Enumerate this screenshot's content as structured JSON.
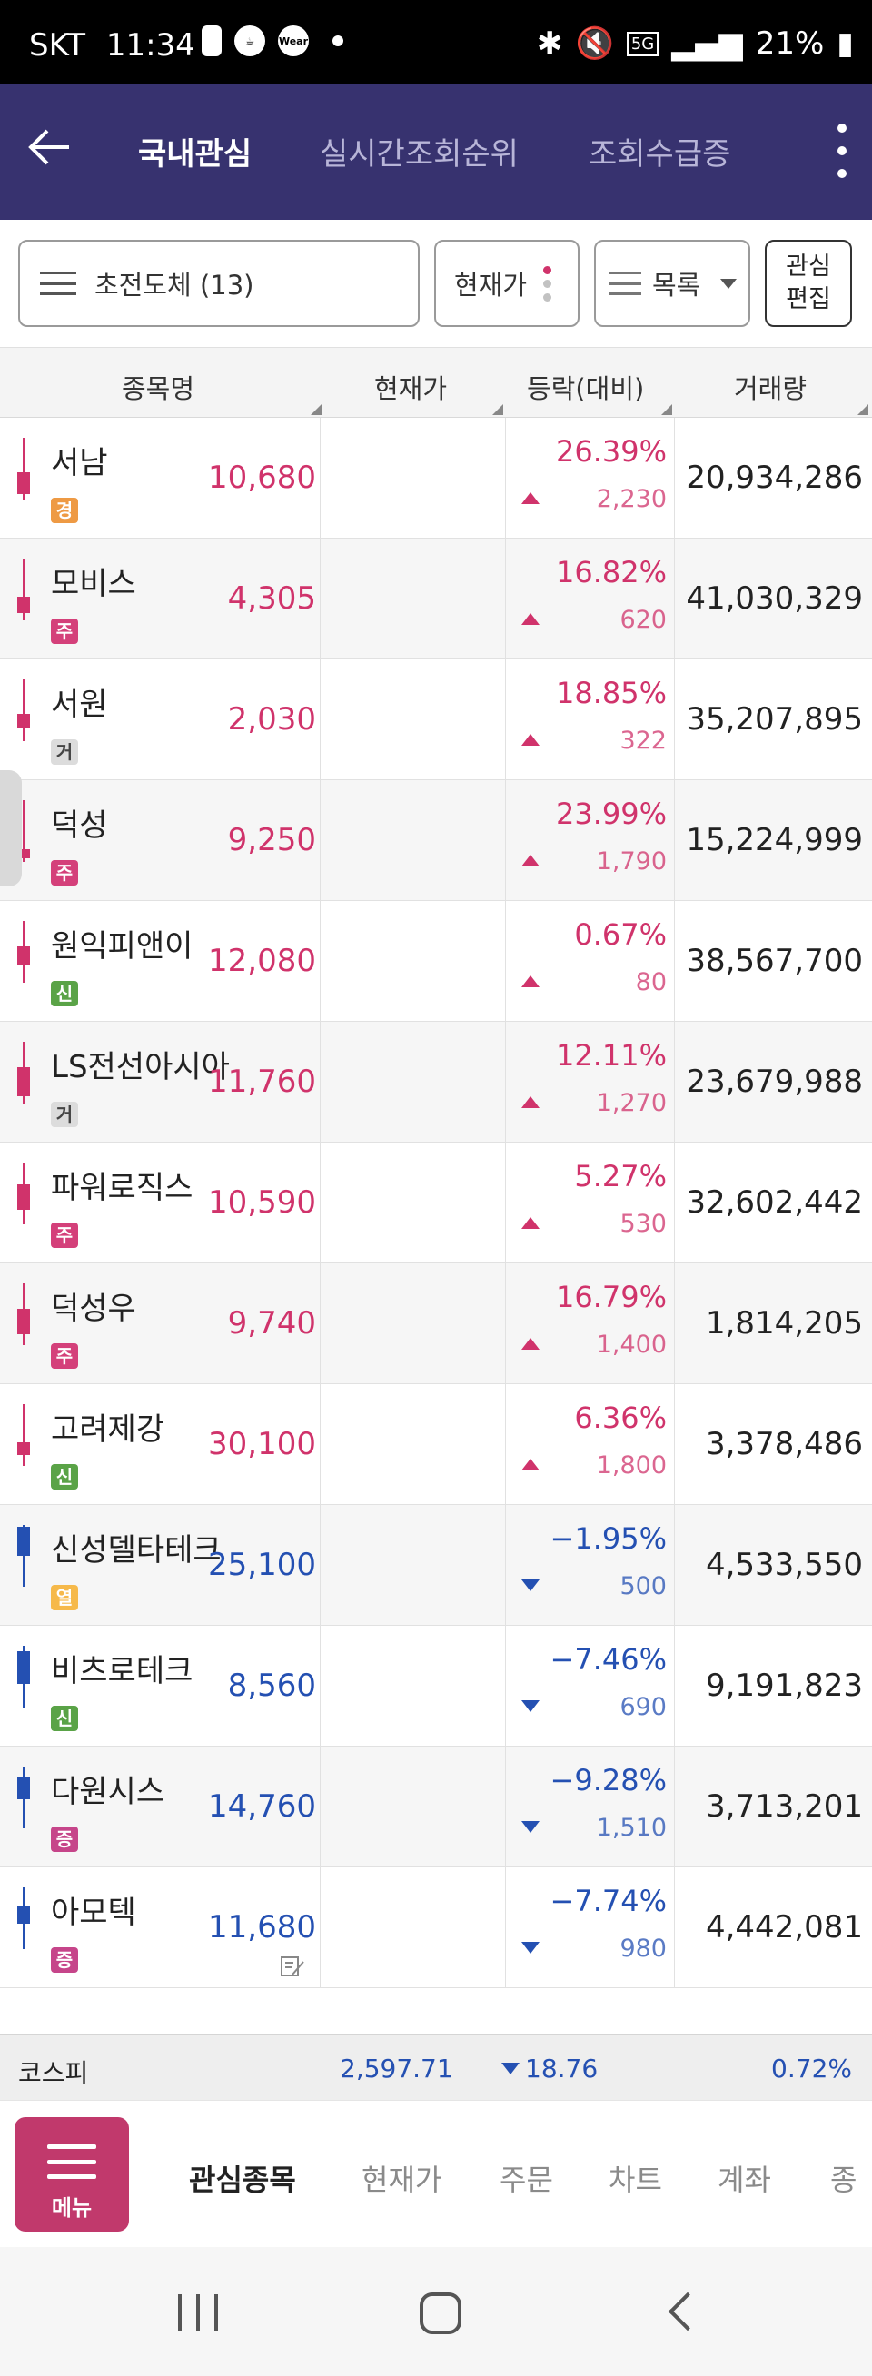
{
  "status": {
    "carrier": "SKT",
    "time": "11:34",
    "wear": "Wear",
    "battery": "21%",
    "network": "5G"
  },
  "header": {
    "tabs": [
      "국내관심",
      "실시간조회순위",
      "조회수급증"
    ]
  },
  "filters": {
    "group": "초전도체 (13)",
    "price_mode": "현재가",
    "view": "목록",
    "edit_line1": "관심",
    "edit_line2": "편집"
  },
  "table": {
    "columns": [
      "종목명",
      "현재가",
      "등락(대비)",
      "거래량"
    ],
    "rows": [
      {
        "name": "서남",
        "badge": "경",
        "price": "10,680",
        "pct": "26.39%",
        "diff": "2,230",
        "volume": "20,934,286",
        "dir": "up"
      },
      {
        "name": "모비스",
        "badge": "주",
        "price": "4,305",
        "pct": "16.82%",
        "diff": "620",
        "volume": "41,030,329",
        "dir": "up"
      },
      {
        "name": "서원",
        "badge": "거",
        "price": "2,030",
        "pct": "18.85%",
        "diff": "322",
        "volume": "35,207,895",
        "dir": "up"
      },
      {
        "name": "덕성",
        "badge": "주",
        "price": "9,250",
        "pct": "23.99%",
        "diff": "1,790",
        "volume": "15,224,999",
        "dir": "up"
      },
      {
        "name": "원익피앤이",
        "badge": "신",
        "price": "12,080",
        "pct": "0.67%",
        "diff": "80",
        "volume": "38,567,700",
        "dir": "up"
      },
      {
        "name": "LS전선아시아",
        "badge": "거",
        "price": "11,760",
        "pct": "12.11%",
        "diff": "1,270",
        "volume": "23,679,988",
        "dir": "up"
      },
      {
        "name": "파워로직스",
        "badge": "주",
        "price": "10,590",
        "pct": "5.27%",
        "diff": "530",
        "volume": "32,602,442",
        "dir": "up"
      },
      {
        "name": "덕성우",
        "badge": "주",
        "price": "9,740",
        "pct": "16.79%",
        "diff": "1,400",
        "volume": "1,814,205",
        "dir": "up"
      },
      {
        "name": "고려제강",
        "badge": "신",
        "price": "30,100",
        "pct": "6.36%",
        "diff": "1,800",
        "volume": "3,378,486",
        "dir": "up"
      },
      {
        "name": "신성델타테크",
        "badge": "열",
        "price": "25,100",
        "pct": "−1.95%",
        "diff": "500",
        "volume": "4,533,550",
        "dir": "down"
      },
      {
        "name": "비츠로테크",
        "badge": "신",
        "price": "8,560",
        "pct": "−7.46%",
        "diff": "690",
        "volume": "9,191,823",
        "dir": "down"
      },
      {
        "name": "다원시스",
        "badge": "증",
        "price": "14,760",
        "pct": "−9.28%",
        "diff": "1,510",
        "volume": "3,713,201",
        "dir": "down"
      },
      {
        "name": "아모텍",
        "badge": "증",
        "price": "11,680",
        "pct": "−7.74%",
        "diff": "980",
        "volume": "4,442,081",
        "dir": "down"
      }
    ]
  },
  "badge_colors": {
    "경": "#ee9a44",
    "주": "#d4407a",
    "거": "#dcdcdc",
    "신": "#5aa347",
    "열": "#f6b94a",
    "증": "#c6458a"
  },
  "index_bar": {
    "name": "코스피",
    "value": "2,597.71",
    "change": "18.76",
    "pct": "0.72%"
  },
  "bottom_nav": {
    "menu_label": "메뉴",
    "items": [
      "관심종목",
      "현재가",
      "주문",
      "차트",
      "계좌",
      "종"
    ]
  },
  "colors": {
    "up": "#d0336b",
    "down": "#2450b2",
    "header_bg": "#37326f"
  }
}
